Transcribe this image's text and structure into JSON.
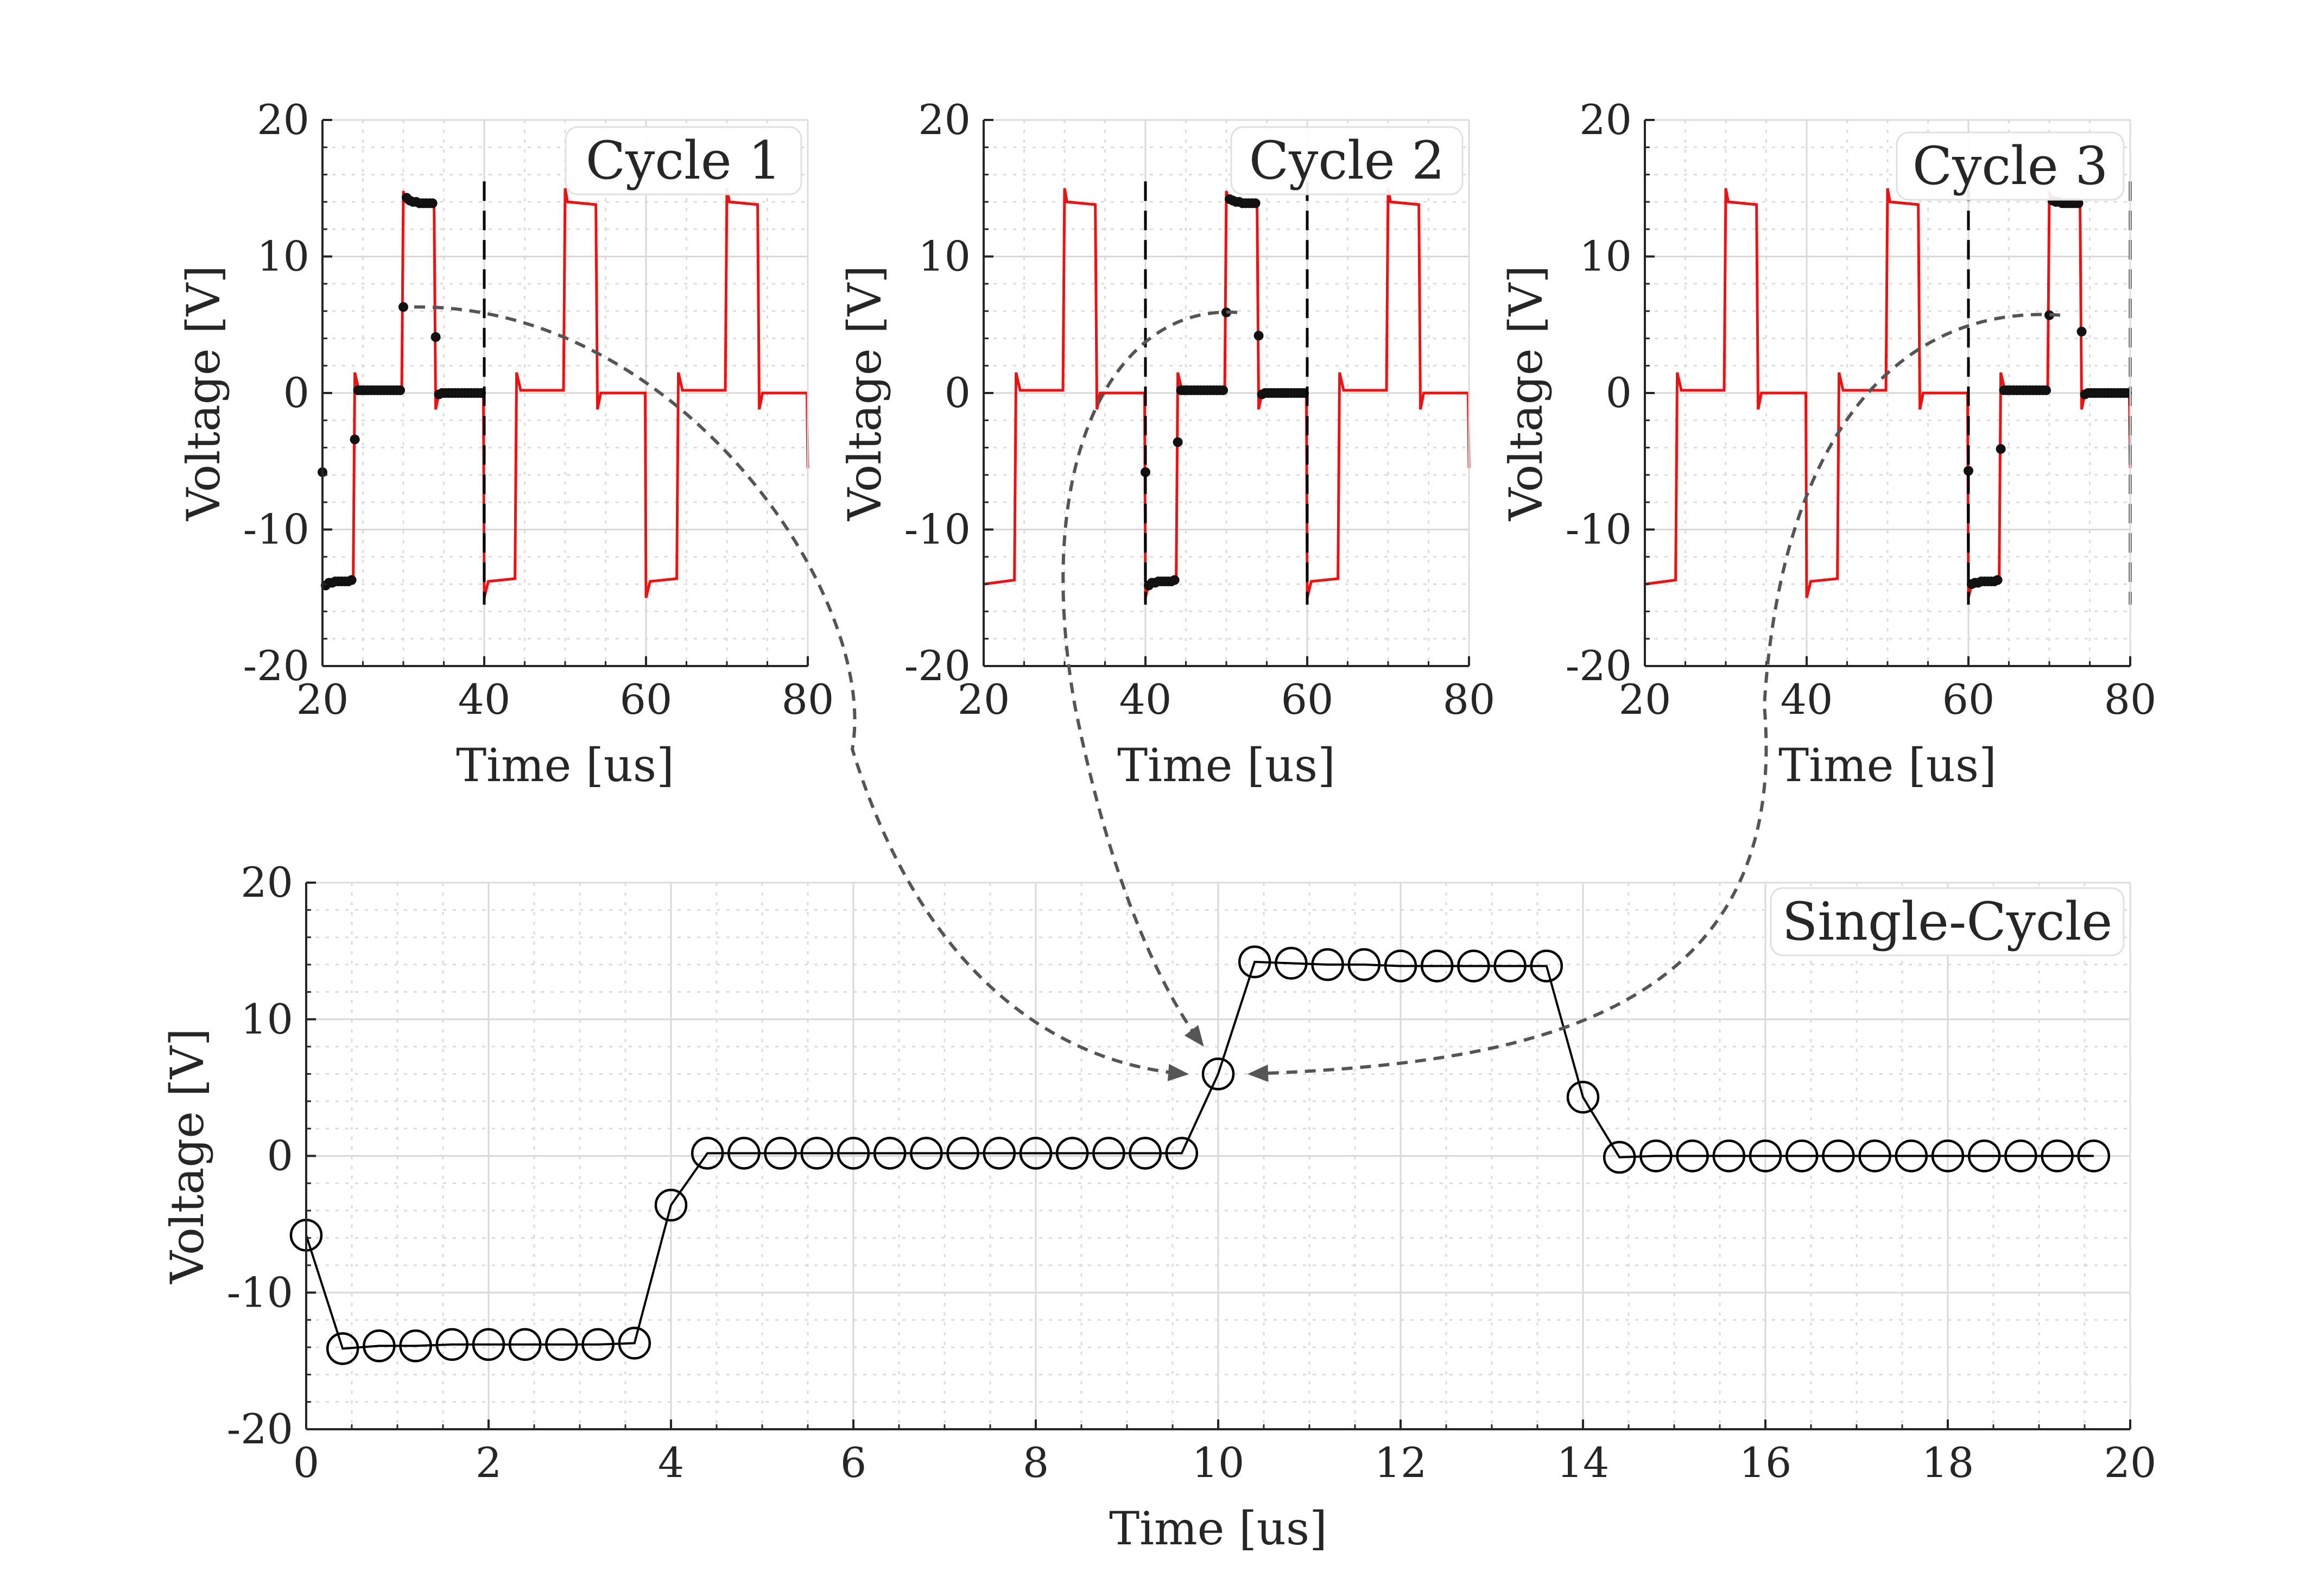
{
  "colors": {
    "waveform": "#ee1111",
    "sampled_points": "#111111",
    "single_cycle": "#000000",
    "arrows": "#555555",
    "grid": "#d9d9d9",
    "axis": "#262626"
  },
  "chart_data": [
    {
      "type": "line",
      "label": "Cycle 1",
      "xlabel": "Time [us]",
      "ylabel": "Voltage [V]",
      "xlim": [
        20,
        80
      ],
      "ylim": [
        -20,
        20
      ],
      "xticks": [
        20,
        40,
        60,
        80
      ],
      "yticks": [
        -20,
        -10,
        0,
        10,
        20
      ],
      "grid": true,
      "minor_grid": true,
      "legend_position": "top-right",
      "cycle_boundaries": [
        40
      ],
      "series": [
        {
          "kind": "waveform",
          "x": [
            20,
            23.8,
            24,
            24.5,
            29.8,
            30,
            30.3,
            33.8,
            34,
            34.4,
            39.9,
            40,
            40.5,
            43.8,
            44,
            44.5,
            49.8,
            50,
            50.3,
            53.8,
            54,
            54.4,
            59.9,
            60,
            60.5,
            63.8,
            64,
            64.5,
            69.8,
            70,
            70.3,
            73.8,
            74,
            74.4,
            79.9,
            80
          ],
          "y": [
            -14,
            -13.7,
            1.5,
            0.2,
            0.2,
            14.8,
            14,
            13.8,
            -1.2,
            0,
            0,
            -15,
            -13.8,
            -13.6,
            1.5,
            0.2,
            0.2,
            15,
            14,
            13.8,
            -1.2,
            0,
            0,
            -15,
            -13.8,
            -13.6,
            1.5,
            0.2,
            0.2,
            15,
            14,
            13.8,
            -1.2,
            0,
            0,
            -5.5
          ]
        },
        {
          "kind": "samples",
          "x": [
            20,
            20.4,
            20.8,
            21.2,
            21.6,
            22,
            22.4,
            22.8,
            23.2,
            23.6,
            24,
            24.4,
            24.8,
            25.2,
            25.6,
            26,
            26.4,
            26.8,
            27.2,
            27.6,
            28,
            28.4,
            28.8,
            29.2,
            29.6,
            30,
            30.4,
            30.8,
            31.2,
            31.6,
            32,
            32.4,
            32.8,
            33.2,
            33.6,
            34,
            34.4,
            34.8,
            35.2,
            35.6,
            36,
            36.4,
            36.8,
            37.2,
            37.6,
            38,
            38.4,
            38.8,
            39.2,
            39.6
          ],
          "y": [
            -5.8,
            -14.1,
            -13.9,
            -13.9,
            -13.8,
            -13.8,
            -13.8,
            -13.8,
            -13.8,
            -13.7,
            -3.4,
            0.2,
            0.2,
            0.2,
            0.2,
            0.2,
            0.2,
            0.2,
            0.2,
            0.2,
            0.2,
            0.2,
            0.2,
            0.2,
            0.2,
            6.3,
            14.3,
            14.1,
            14.0,
            14.0,
            13.9,
            13.9,
            13.9,
            13.9,
            13.9,
            4.1,
            -0.1,
            0,
            0,
            0,
            0,
            0,
            0,
            0,
            0,
            0,
            0,
            0,
            0,
            0
          ]
        }
      ]
    },
    {
      "type": "line",
      "label": "Cycle 2",
      "xlabel": "Time [us]",
      "ylabel": "Voltage [V]",
      "xlim": [
        20,
        80
      ],
      "ylim": [
        -20,
        20
      ],
      "xticks": [
        20,
        40,
        60,
        80
      ],
      "yticks": [
        -20,
        -10,
        0,
        10,
        20
      ],
      "grid": true,
      "minor_grid": true,
      "legend_position": "top-right",
      "cycle_boundaries": [
        40,
        60
      ],
      "series": [
        {
          "kind": "waveform",
          "x": [
            20,
            23.8,
            24,
            24.5,
            29.8,
            30,
            30.3,
            33.8,
            34,
            34.4,
            39.9,
            40,
            40.5,
            43.8,
            44,
            44.5,
            49.8,
            50,
            50.3,
            53.8,
            54,
            54.4,
            59.9,
            60,
            60.5,
            63.8,
            64,
            64.5,
            69.8,
            70,
            70.3,
            73.8,
            74,
            74.4,
            79.9,
            80
          ],
          "y": [
            -14,
            -13.7,
            1.5,
            0.2,
            0.2,
            15,
            14,
            13.8,
            -1.2,
            0,
            0,
            -15,
            -13.8,
            -13.6,
            1.5,
            0.2,
            0.2,
            14.8,
            14,
            13.8,
            -1.2,
            0,
            0,
            -15,
            -13.8,
            -13.6,
            1.5,
            0.2,
            0.2,
            15,
            14,
            13.8,
            -1.2,
            0,
            0,
            -5.5
          ]
        },
        {
          "kind": "samples",
          "x": [
            40,
            40.4,
            40.8,
            41.2,
            41.6,
            42,
            42.4,
            42.8,
            43.2,
            43.6,
            44,
            44.4,
            44.8,
            45.2,
            45.6,
            46,
            46.4,
            46.8,
            47.2,
            47.6,
            48,
            48.4,
            48.8,
            49.2,
            49.6,
            50,
            50.4,
            50.8,
            51.2,
            51.6,
            52,
            52.4,
            52.8,
            53.2,
            53.6,
            54,
            54.4,
            54.8,
            55.2,
            55.6,
            56,
            56.4,
            56.8,
            57.2,
            57.6,
            58,
            58.4,
            58.8,
            59.2,
            59.6
          ],
          "y": [
            -5.8,
            -14.1,
            -13.9,
            -13.9,
            -13.8,
            -13.8,
            -13.8,
            -13.8,
            -13.8,
            -13.7,
            -3.6,
            0.2,
            0.2,
            0.2,
            0.2,
            0.2,
            0.2,
            0.2,
            0.2,
            0.2,
            0.2,
            0.2,
            0.2,
            0.2,
            0.2,
            5.9,
            14.2,
            14.1,
            14.0,
            14.0,
            13.9,
            13.9,
            13.9,
            13.9,
            13.9,
            4.2,
            -0.1,
            0,
            0,
            0,
            0,
            0,
            0,
            0,
            0,
            0,
            0,
            0,
            0,
            0
          ]
        }
      ]
    },
    {
      "type": "line",
      "label": "Cycle 3",
      "xlabel": "Time [us]",
      "ylabel": "Voltage [V]",
      "xlim": [
        20,
        80
      ],
      "ylim": [
        -20,
        20
      ],
      "xticks": [
        20,
        40,
        60,
        80
      ],
      "yticks": [
        -20,
        -10,
        0,
        10,
        20
      ],
      "grid": true,
      "minor_grid": true,
      "legend_position": "top-right",
      "cycle_boundaries": [
        60,
        80
      ],
      "series": [
        {
          "kind": "waveform",
          "x": [
            20,
            23.8,
            24,
            24.5,
            29.8,
            30,
            30.3,
            33.8,
            34,
            34.4,
            39.9,
            40,
            40.5,
            43.8,
            44,
            44.5,
            49.8,
            50,
            50.3,
            53.8,
            54,
            54.4,
            59.9,
            60,
            60.5,
            63.8,
            64,
            64.5,
            69.8,
            70,
            70.3,
            73.8,
            74,
            74.4,
            79.9,
            80
          ],
          "y": [
            -14,
            -13.7,
            1.5,
            0.2,
            0.2,
            15,
            14,
            13.8,
            -1.2,
            0,
            0,
            -15,
            -13.8,
            -13.6,
            1.5,
            0.2,
            0.2,
            15,
            14,
            13.8,
            -1.2,
            0,
            0,
            -15,
            -13.8,
            -13.6,
            1.5,
            0.2,
            0.2,
            14.8,
            14,
            13.8,
            -1.2,
            0,
            0,
            -5.5
          ]
        },
        {
          "kind": "samples",
          "x": [
            60,
            60.4,
            60.8,
            61.2,
            61.6,
            62,
            62.4,
            62.8,
            63.2,
            63.6,
            64,
            64.4,
            64.8,
            65.2,
            65.6,
            66,
            66.4,
            66.8,
            67.2,
            67.6,
            68,
            68.4,
            68.8,
            69.2,
            69.6,
            70,
            70.4,
            70.8,
            71.2,
            71.6,
            72,
            72.4,
            72.8,
            73.2,
            73.6,
            74,
            74.4,
            74.8,
            75.2,
            75.6,
            76,
            76.4,
            76.8,
            77.2,
            77.6,
            78,
            78.4,
            78.8,
            79.2,
            79.6
          ],
          "y": [
            -5.7,
            -14.0,
            -13.9,
            -13.9,
            -13.8,
            -13.8,
            -13.8,
            -13.8,
            -13.8,
            -13.7,
            -4.1,
            0.2,
            0.2,
            0.2,
            0.2,
            0.2,
            0.2,
            0.2,
            0.2,
            0.2,
            0.2,
            0.2,
            0.2,
            0.2,
            0.2,
            5.7,
            14.1,
            14.0,
            14.0,
            13.9,
            13.9,
            13.9,
            13.9,
            13.9,
            13.9,
            4.5,
            -0.1,
            0,
            0,
            0,
            0,
            0,
            0,
            0,
            0,
            0,
            0,
            0,
            0,
            0
          ]
        }
      ]
    },
    {
      "type": "line",
      "label": "Single-Cycle",
      "xlabel": "Time [us]",
      "ylabel": "Voltage [V]",
      "xlim": [
        0,
        20
      ],
      "ylim": [
        -20,
        20
      ],
      "xticks": [
        0,
        2,
        4,
        6,
        8,
        10,
        12,
        14,
        16,
        18,
        20
      ],
      "yticks": [
        -20,
        -10,
        0,
        10,
        20
      ],
      "grid": true,
      "minor_grid": true,
      "legend_position": "top-right",
      "marker": "open-circle",
      "series": [
        {
          "kind": "single_cycle",
          "x": [
            0,
            0.4,
            0.8,
            1.2,
            1.6,
            2.0,
            2.4,
            2.8,
            3.2,
            3.6,
            4.0,
            4.4,
            4.8,
            5.2,
            5.6,
            6.0,
            6.4,
            6.8,
            7.2,
            7.6,
            8.0,
            8.4,
            8.8,
            9.2,
            9.6,
            10.0,
            10.4,
            10.8,
            11.2,
            11.6,
            12.0,
            12.4,
            12.8,
            13.2,
            13.6,
            14.0,
            14.4,
            14.8,
            15.2,
            15.6,
            16.0,
            16.4,
            16.8,
            17.2,
            17.6,
            18.0,
            18.4,
            18.8,
            19.2,
            19.6
          ],
          "y": [
            -5.8,
            -14.1,
            -13.9,
            -13.9,
            -13.8,
            -13.8,
            -13.8,
            -13.8,
            -13.8,
            -13.7,
            -3.6,
            0.2,
            0.2,
            0.2,
            0.2,
            0.2,
            0.2,
            0.2,
            0.2,
            0.2,
            0.2,
            0.2,
            0.2,
            0.2,
            0.2,
            6.0,
            14.2,
            14.1,
            14.0,
            14.0,
            13.9,
            13.9,
            13.9,
            13.9,
            13.9,
            4.3,
            -0.1,
            0,
            0,
            0,
            0,
            0,
            0,
            0,
            0,
            0,
            0,
            0,
            0,
            0
          ]
        }
      ]
    }
  ]
}
